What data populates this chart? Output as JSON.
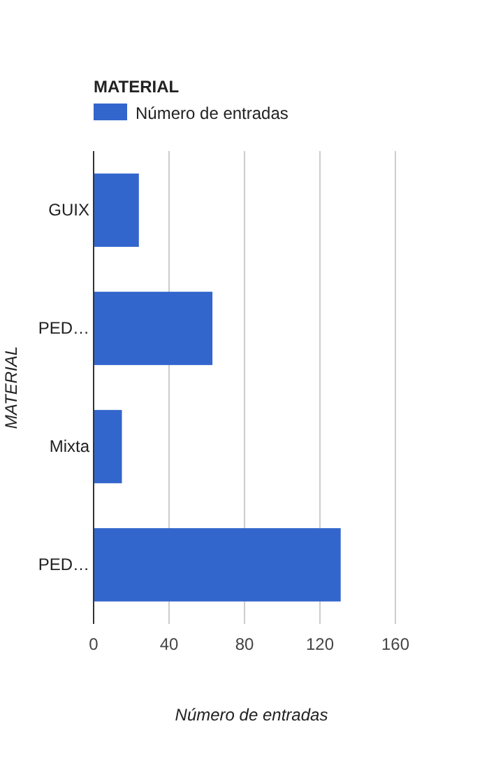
{
  "chart_data": {
    "type": "bar",
    "orientation": "horizontal",
    "title": "MATERIAL",
    "xlabel": "Número de entradas",
    "ylabel": "MATERIAL",
    "categories": [
      "GUIX",
      "PED…",
      "Mixta",
      "PED…"
    ],
    "series": [
      {
        "name": "Número de entradas",
        "color": "#3366cc",
        "values": [
          24,
          63,
          15,
          131
        ]
      }
    ],
    "xlim": [
      0,
      160
    ],
    "xticks": [
      0,
      40,
      80,
      120,
      160
    ],
    "grid": "x",
    "legend": "top left"
  }
}
